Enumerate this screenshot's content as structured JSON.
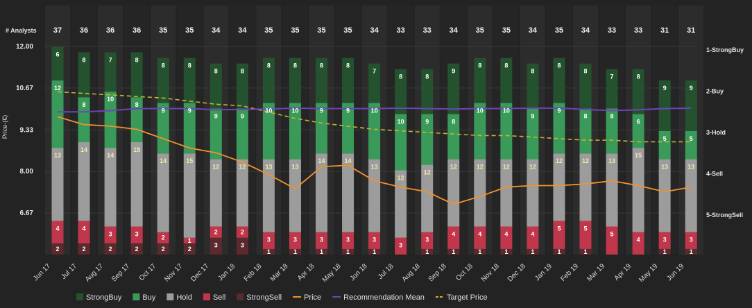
{
  "chart_data": {
    "type": "bar",
    "stacked": true,
    "analysts_label": "# Analysts",
    "y_axis_label": "Price-(€)",
    "y_ticks": [
      "12.00",
      "10.67",
      "9.33",
      "8.00",
      "6.67"
    ],
    "y_tick_values": [
      12.0,
      10.67,
      9.33,
      8.0,
      6.67
    ],
    "price_range": [
      5.34,
      12.0
    ],
    "rating_axis_labels": [
      "1-StrongBuy",
      "2-Buy",
      "3-Hold",
      "4-Sell",
      "5-StrongSell"
    ],
    "categories": [
      "Jun 17",
      "Jul 17",
      "Aug 17",
      "Sep 17",
      "Oct 17",
      "Nov 17",
      "Dec 17",
      "Jan 18",
      "Feb 18",
      "Mar 18",
      "Apr 18",
      "May 18",
      "Jun 18",
      "Jul 18",
      "Aug 18",
      "Sep 18",
      "Oct 18",
      "Nov 18",
      "Dec 18",
      "Jan 19",
      "Feb 19",
      "Mar 19",
      "Apr 19",
      "May 19",
      "Jun 19"
    ],
    "analysts": [
      37,
      36,
      36,
      36,
      35,
      35,
      34,
      34,
      35,
      35,
      35,
      35,
      34,
      33,
      33,
      34,
      35,
      35,
      34,
      35,
      34,
      33,
      33,
      31,
      31
    ],
    "series": [
      {
        "name": "StrongBuy",
        "color": "#24522f",
        "values": [
          6,
          8,
          7,
          8,
          8,
          8,
          8,
          8,
          8,
          8,
          8,
          8,
          7,
          8,
          8,
          9,
          8,
          8,
          8,
          8,
          8,
          7,
          8,
          9,
          9
        ]
      },
      {
        "name": "Buy",
        "color": "#3a9a5a",
        "values": [
          12,
          8,
          10,
          8,
          9,
          9,
          9,
          9,
          10,
          10,
          9,
          9,
          10,
          10,
          9,
          8,
          10,
          10,
          9,
          9,
          8,
          8,
          6,
          5,
          5
        ]
      },
      {
        "name": "Hold",
        "color": "#9c9c9c",
        "values": [
          13,
          14,
          14,
          15,
          14,
          15,
          12,
          12,
          13,
          13,
          14,
          14,
          13,
          12,
          12,
          12,
          12,
          12,
          12,
          12,
          12,
          13,
          15,
          13,
          13
        ]
      },
      {
        "name": "Sell",
        "color": "#c0364b",
        "values": [
          4,
          4,
          3,
          3,
          2,
          1,
          2,
          2,
          3,
          3,
          3,
          3,
          3,
          3,
          3,
          4,
          4,
          4,
          4,
          5,
          5,
          5,
          4,
          3,
          3
        ]
      },
      {
        "name": "StrongSell",
        "color": "#5a2a2e",
        "values": [
          2,
          2,
          2,
          2,
          2,
          2,
          3,
          3,
          1,
          1,
          1,
          1,
          1,
          0,
          1,
          1,
          1,
          1,
          1,
          1,
          1,
          0,
          0,
          1,
          1
        ]
      }
    ],
    "price": {
      "name": "Price",
      "color": "#f0922e",
      "values": [
        9.75,
        9.5,
        9.45,
        9.35,
        9.05,
        8.75,
        8.6,
        8.3,
        7.9,
        7.45,
        8.15,
        8.2,
        7.7,
        7.5,
        7.35,
        6.95,
        7.2,
        7.5,
        7.55,
        7.55,
        7.6,
        7.7,
        7.55,
        7.35,
        7.5
      ]
    },
    "recommendation_mean": {
      "name": "Recommendation Mean",
      "color": "#6e44b8",
      "values": [
        2.5,
        2.5,
        2.47,
        2.42,
        2.42,
        2.42,
        2.45,
        2.44,
        2.43,
        2.41,
        2.42,
        2.42,
        2.42,
        2.41,
        2.42,
        2.43,
        2.42,
        2.42,
        2.41,
        2.41,
        2.44,
        2.47,
        2.45,
        2.42,
        2.41
      ]
    },
    "target_price": {
      "name": "Target Price",
      "color": "#c8b434",
      "values": [
        10.55,
        10.5,
        10.45,
        10.4,
        10.35,
        10.25,
        10.15,
        10.1,
        9.9,
        9.7,
        9.55,
        9.45,
        9.35,
        9.3,
        9.25,
        9.2,
        9.15,
        9.15,
        9.1,
        9.05,
        9.0,
        9.0,
        8.95,
        8.95,
        8.95
      ]
    },
    "legend": [
      {
        "label": "StrongBuy",
        "type": "box",
        "color": "#24522f"
      },
      {
        "label": "Buy",
        "type": "box",
        "color": "#3a9a5a"
      },
      {
        "label": "Hold",
        "type": "box",
        "color": "#9c9c9c"
      },
      {
        "label": "Sell",
        "type": "box",
        "color": "#c0364b"
      },
      {
        "label": "StrongSell",
        "type": "box",
        "color": "#5a2a2e"
      },
      {
        "label": "Price",
        "type": "line",
        "color": "#f0922e"
      },
      {
        "label": "Recommendation Mean",
        "type": "line",
        "color": "#6e44b8"
      },
      {
        "label": "Target Price",
        "type": "dash",
        "color": "#c8b434"
      }
    ]
  }
}
